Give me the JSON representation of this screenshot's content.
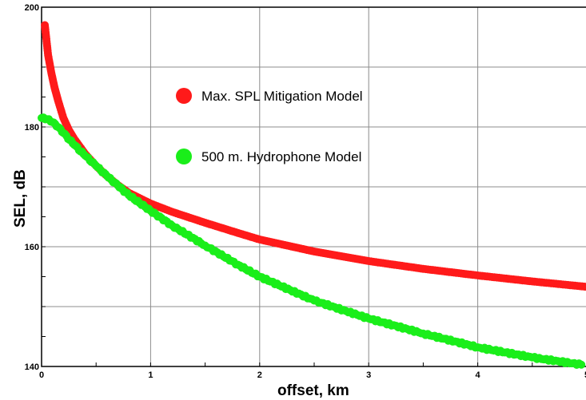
{
  "chart_data": {
    "type": "scatter",
    "xlabel": "offset, km",
    "ylabel": "SEL, dB",
    "xlim": [
      0,
      5
    ],
    "ylim": [
      140,
      200
    ],
    "x_ticks": [
      "0",
      "1",
      "2",
      "3",
      "4",
      "5"
    ],
    "y_ticks": [
      "140",
      "160",
      "180",
      "200"
    ],
    "grid": true,
    "legend_position": "inside-upper-right",
    "series": [
      {
        "name": "Max. SPL Mitigation Model",
        "color": "#ff1a1a",
        "x": [
          0.03,
          0.06,
          0.09,
          0.12,
          0.15,
          0.2,
          0.25,
          0.3,
          0.4,
          0.5,
          0.6,
          0.7,
          0.8,
          1.0,
          1.2,
          1.5,
          1.8,
          2.0,
          2.5,
          3.0,
          3.5,
          4.0,
          4.5,
          5.0
        ],
        "y": [
          197,
          192,
          189,
          186.5,
          184.5,
          181.5,
          179.5,
          178,
          175.5,
          173.5,
          171.8,
          170.3,
          169,
          167.2,
          165.8,
          164,
          162.3,
          161.2,
          159.2,
          157.6,
          156.3,
          155.2,
          154.2,
          153.3
        ]
      },
      {
        "name": "500 m. Hydrophone Model",
        "color": "#1aee1a",
        "x": [
          0.0,
          0.05,
          0.1,
          0.15,
          0.2,
          0.3,
          0.4,
          0.5,
          0.6,
          0.7,
          0.8,
          1.0,
          1.2,
          1.5,
          1.8,
          2.0,
          2.5,
          3.0,
          3.5,
          4.0,
          4.5,
          4.95
        ],
        "y": [
          181.5,
          181.3,
          180.8,
          180,
          179,
          177,
          175.2,
          173.5,
          171.8,
          170.2,
          168.6,
          166,
          163.5,
          160.2,
          157,
          155,
          151,
          148,
          145.5,
          143.2,
          141.5,
          140.3
        ]
      }
    ]
  }
}
